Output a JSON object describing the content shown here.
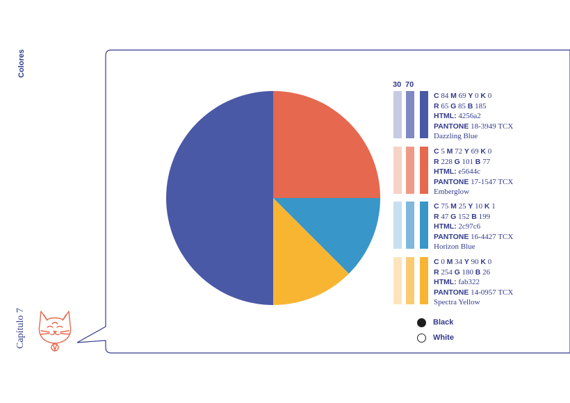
{
  "section": "Colores",
  "chapter": "Capítulo 7",
  "tint_headers": [
    "30",
    "70"
  ],
  "colors": [
    {
      "cmyk": {
        "c": "84",
        "m": "69",
        "y": "0",
        "k": "0"
      },
      "rgb": {
        "r": "65",
        "g": "85",
        "b": "185"
      },
      "html": "4256a2",
      "pantone": "18-3949 TCX",
      "name": "Dazzling Blue",
      "hex": "#4a59a6",
      "tint30": "#c7cae3",
      "tint70": "#8089c2"
    },
    {
      "cmyk": {
        "c": "5",
        "m": "72",
        "y": "69",
        "k": "0"
      },
      "rgb": {
        "r": "228",
        "g": "101",
        "b": "77"
      },
      "html": "e5644c",
      "pantone": "17-1547 TCX",
      "name": "Emberglow",
      "hex": "#e5684f",
      "tint30": "#f7d2c7",
      "tint70": "#ee9a86"
    },
    {
      "cmyk": {
        "c": "75",
        "m": "25",
        "y": "10",
        "k": "1"
      },
      "rgb": {
        "r": "47",
        "g": "152",
        "b": "199"
      },
      "html": "2c97c6",
      "pantone": "16-4427 TCX",
      "name": "Horizon Blue",
      "hex": "#3897c8",
      "tint30": "#c8dff0",
      "tint70": "#7fb8dc"
    },
    {
      "cmyk": {
        "c": "0",
        "m": "34",
        "y": "90",
        "k": "0"
      },
      "rgb": {
        "r": "254",
        "g": "180",
        "b": "26"
      },
      "html": "fab322",
      "pantone": "14-0957 TCX",
      "name": "Spectra Yellow",
      "hex": "#f8b532",
      "tint30": "#fde4bd",
      "tint70": "#f9cc73"
    }
  ],
  "pie": {
    "slices": [
      {
        "color_index": 1,
        "share": 0.25
      },
      {
        "color_index": 2,
        "share": 0.125
      },
      {
        "color_index": 3,
        "share": 0.125
      },
      {
        "color_index": 0,
        "share": 0.5
      }
    ]
  },
  "neutrals": [
    {
      "label": "Black",
      "fill": "#1e1e1e"
    },
    {
      "label": "White",
      "fill": "#ffffff"
    }
  ],
  "ui": {
    "frame_color": "#323b8c",
    "mascot_color": "#e5684f"
  }
}
